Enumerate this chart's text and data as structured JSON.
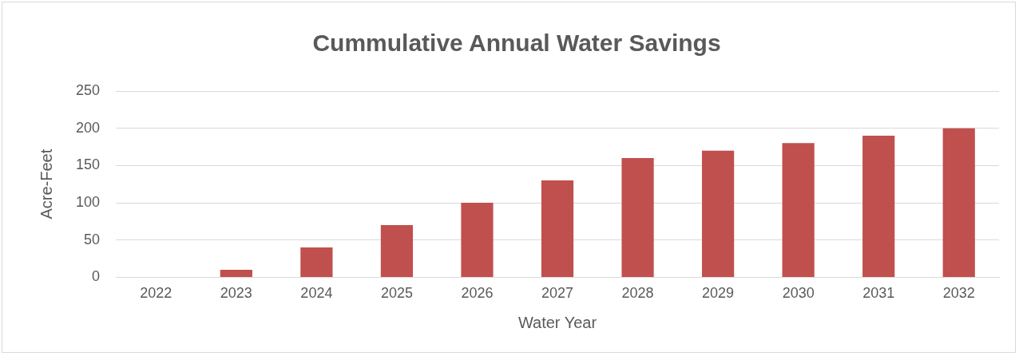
{
  "chart_data": {
    "type": "bar",
    "title": "Cummulative Annual Water Savings",
    "xlabel": "Water Year",
    "ylabel": "Acre-Feet",
    "categories": [
      "2022",
      "2023",
      "2024",
      "2025",
      "2026",
      "2027",
      "2028",
      "2029",
      "2030",
      "2031",
      "2032"
    ],
    "values": [
      0,
      10,
      40,
      70,
      100,
      130,
      160,
      170,
      180,
      190,
      200
    ],
    "color": "#c0504d",
    "ylim": [
      0,
      250
    ],
    "yticks": [
      0,
      50,
      100,
      150,
      200,
      250
    ],
    "grid": "y",
    "legend": false
  }
}
